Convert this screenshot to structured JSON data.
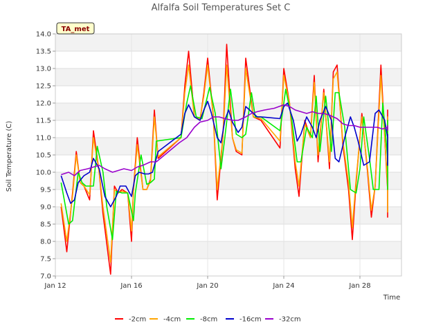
{
  "chart_data": {
    "type": "line",
    "title": "Alfalfa Soil Temperatures Set C",
    "xlabel": "Time",
    "ylabel": "Soil Temperature (C)",
    "annotation": "TA_met",
    "x_ticks": [
      "Jan 12",
      "Jan 16",
      "Jan 20",
      "Jan 24",
      "Jan 28"
    ],
    "x_tick_days": [
      12,
      16,
      20,
      24,
      28
    ],
    "xlim": [
      12,
      30
    ],
    "ylim": [
      7.0,
      14.0
    ],
    "y_ticks": [
      "7.0",
      "7.5",
      "8.0",
      "8.5",
      "9.0",
      "9.5",
      "10.0",
      "10.5",
      "11.0",
      "11.5",
      "12.0",
      "12.5",
      "13.0",
      "13.5",
      "14.0"
    ],
    "grid": true,
    "legend_position": "bottom",
    "series": [
      {
        "name": "-2cm",
        "color": "#ff0000",
        "x": [
          12.3,
          12.6,
          12.9,
          13.1,
          13.3,
          13.5,
          13.8,
          14.0,
          14.3,
          14.5,
          14.9,
          15.1,
          15.3,
          15.5,
          15.8,
          16.0,
          16.1,
          16.3,
          16.6,
          16.8,
          17.0,
          17.2,
          17.4,
          18.6,
          18.8,
          19.0,
          19.3,
          19.6,
          19.8,
          20.0,
          20.3,
          20.5,
          20.8,
          21.0,
          21.3,
          21.5,
          21.8,
          22.0,
          22.4,
          22.8,
          23.8,
          24.0,
          24.3,
          24.6,
          24.8,
          25.1,
          25.4,
          25.6,
          25.8,
          26.1,
          26.4,
          26.6,
          26.8,
          27.1,
          27.4,
          27.6,
          27.8,
          28.1,
          28.4,
          28.6,
          28.8,
          29.1,
          29.4,
          29.6
        ],
        "y": [
          9.0,
          7.7,
          9.4,
          10.6,
          9.7,
          9.6,
          9.2,
          11.2,
          10.0,
          8.8,
          7.05,
          9.6,
          9.4,
          9.5,
          9.4,
          8.0,
          9.5,
          11.0,
          9.5,
          9.5,
          9.8,
          11.8,
          10.4,
          11.0,
          12.5,
          13.5,
          11.6,
          11.5,
          12.3,
          13.3,
          11.6,
          9.2,
          11.0,
          13.7,
          11.0,
          10.6,
          10.5,
          13.3,
          11.6,
          11.5,
          10.7,
          13.0,
          12.0,
          10.1,
          9.3,
          11.5,
          11.0,
          12.8,
          10.3,
          12.4,
          10.1,
          12.9,
          13.1,
          10.8,
          9.5,
          8.05,
          9.7,
          11.7,
          10.0,
          8.7,
          9.6,
          13.1,
          10.0,
          9.5
        ],
        "x2": [
          29.6,
          29.8,
          30.0,
          30.3,
          30.6,
          30.8,
          31.0
        ],
        "y2": [
          9.5,
          9.1,
          8.75,
          8.7,
          10.8,
          11.8,
          11.05
        ]
      },
      {
        "name": "-4cm",
        "color": "#ffa500",
        "x": [
          12.3,
          12.6,
          12.9,
          13.1,
          13.3,
          13.5,
          13.8,
          14.0,
          14.3,
          14.5,
          14.9,
          15.1,
          15.3,
          15.5,
          15.8,
          16.0,
          16.1,
          16.3,
          16.6,
          16.8,
          17.0,
          17.2,
          17.4,
          18.6,
          18.8,
          19.0,
          19.3,
          19.6,
          19.8,
          20.0,
          20.3,
          20.5,
          20.8,
          21.0,
          21.3,
          21.5,
          21.8,
          22.0,
          22.4,
          22.8,
          23.8,
          24.0,
          24.3,
          24.6,
          24.8,
          25.1,
          25.4,
          25.6,
          25.8,
          26.1,
          26.4,
          26.6,
          26.8,
          27.1,
          27.4,
          27.6,
          27.8,
          28.1,
          28.4,
          28.6,
          28.8,
          29.1,
          29.4,
          29.6
        ],
        "y": [
          9.1,
          8.0,
          9.3,
          10.5,
          9.7,
          9.6,
          9.35,
          11.0,
          10.0,
          9.0,
          7.4,
          9.5,
          9.4,
          9.45,
          9.4,
          8.3,
          9.45,
          10.8,
          9.5,
          9.5,
          9.75,
          11.6,
          10.45,
          11.0,
          12.3,
          13.1,
          11.6,
          11.55,
          12.2,
          13.1,
          11.6,
          9.5,
          11.0,
          13.1,
          11.0,
          10.65,
          10.55,
          13.0,
          11.6,
          11.55,
          10.9,
          12.8,
          12.0,
          10.3,
          9.6,
          11.4,
          11.0,
          12.6,
          10.5,
          12.3,
          10.3,
          12.7,
          12.9,
          10.9,
          9.7,
          8.4,
          9.8,
          11.6,
          10.1,
          8.9,
          9.6,
          12.8,
          10.1,
          9.6
        ],
        "x2": [
          29.6,
          29.8,
          30.0,
          30.3,
          30.6,
          30.8,
          31.0
        ],
        "y2": [
          9.6,
          9.2,
          8.9,
          8.85,
          10.9,
          11.6,
          11.1
        ]
      },
      {
        "name": "-8cm",
        "color": "#00ee00",
        "x": [
          12.3,
          12.7,
          12.9,
          13.2,
          13.4,
          13.6,
          14.0,
          14.2,
          14.5,
          14.7,
          15.0,
          15.2,
          15.5,
          15.8,
          16.1,
          16.2,
          16.5,
          16.8,
          17.0,
          17.2,
          17.3,
          18.6,
          18.9,
          19.1,
          19.4,
          19.7,
          19.9,
          20.1,
          20.4,
          20.7,
          20.9,
          21.2,
          21.5,
          21.8,
          22.0,
          22.3,
          22.5,
          22.8,
          23.8,
          24.1,
          24.4,
          24.7,
          24.9,
          25.2,
          25.5,
          25.7,
          25.9,
          26.2,
          26.5,
          26.7,
          26.9,
          27.2,
          27.5,
          27.8,
          28.0,
          28.2,
          28.5,
          28.7,
          29.0,
          29.2,
          29.5,
          29.7
        ],
        "y": [
          9.7,
          8.5,
          8.6,
          10.0,
          9.7,
          9.6,
          9.6,
          10.75,
          10.0,
          9.0,
          8.05,
          9.45,
          9.4,
          9.4,
          8.6,
          9.4,
          10.5,
          9.65,
          9.7,
          9.8,
          10.9,
          11.0,
          12.0,
          12.5,
          11.6,
          11.55,
          12.0,
          12.45,
          11.7,
          10.1,
          11.0,
          12.4,
          11.1,
          11.0,
          11.1,
          12.3,
          11.6,
          11.6,
          11.2,
          12.4,
          11.6,
          10.3,
          10.3,
          11.3,
          11.0,
          12.2,
          10.6,
          12.2,
          10.6,
          12.3,
          12.3,
          11.3,
          9.5,
          9.4,
          10.1,
          11.6,
          10.4,
          9.5,
          9.5,
          12.0,
          10.4,
          9.6
        ],
        "x2": [
          29.7,
          30.0,
          30.3,
          30.6,
          30.8,
          31.0
        ],
        "y2": [
          9.6,
          9.5,
          10.0,
          11.0,
          11.5,
          11.2
        ]
      },
      {
        "name": "-16cm",
        "color": "#0000cc",
        "x": [
          12.3,
          12.6,
          12.8,
          13.0,
          13.2,
          13.5,
          13.8,
          14.0,
          14.3,
          14.6,
          14.9,
          15.2,
          15.4,
          15.7,
          16.0,
          16.2,
          16.4,
          16.7,
          16.9,
          17.1,
          17.4,
          18.6,
          18.8,
          19.0,
          19.3,
          19.6,
          19.8,
          20.0,
          20.2,
          20.5,
          20.7,
          20.9,
          21.1,
          21.3,
          21.6,
          21.8,
          22.0,
          22.3,
          22.6,
          22.8,
          23.8,
          24.0,
          24.2,
          24.5,
          24.7,
          24.9,
          25.2,
          25.5,
          25.7,
          25.9,
          26.2,
          26.5,
          26.7,
          26.9,
          27.2,
          27.5,
          27.7,
          27.9,
          28.2,
          28.5,
          28.8,
          29.0,
          29.3,
          29.6
        ],
        "y": [
          9.9,
          9.4,
          9.1,
          9.2,
          9.7,
          9.9,
          10.0,
          10.4,
          10.1,
          9.3,
          9.0,
          9.3,
          9.6,
          9.6,
          9.3,
          9.9,
          10.0,
          9.95,
          9.95,
          10.0,
          10.6,
          11.1,
          11.7,
          11.95,
          11.6,
          11.5,
          11.8,
          12.05,
          11.7,
          11.0,
          10.85,
          11.5,
          11.8,
          11.45,
          11.15,
          11.3,
          11.9,
          11.75,
          11.6,
          11.6,
          11.55,
          11.9,
          12.0,
          11.5,
          10.9,
          11.1,
          11.6,
          11.3,
          11.0,
          11.5,
          11.9,
          11.5,
          10.4,
          10.3,
          11.0,
          11.6,
          11.3,
          10.9,
          10.2,
          10.3,
          11.7,
          11.8,
          11.5,
          11.0
        ],
        "x2": [
          29.6,
          29.9,
          30.2,
          30.5,
          30.7,
          31.0
        ],
        "y2": [
          11.0,
          10.5,
          10.2,
          10.2,
          10.8,
          11.1
        ]
      },
      {
        "name": "-32cm",
        "color": "#9900cc",
        "x": [
          12.3,
          12.7,
          13.0,
          13.3,
          13.7,
          14.0,
          14.3,
          14.6,
          15.0,
          15.3,
          15.6,
          16.0,
          16.3,
          16.6,
          17.0,
          17.3,
          18.5,
          18.9,
          19.3,
          19.6,
          20.0,
          20.3,
          20.6,
          20.9,
          21.3,
          21.6,
          22.0,
          22.3,
          22.6,
          23.0,
          23.5,
          24.0,
          24.3,
          24.6,
          24.9,
          25.2,
          25.5,
          25.8,
          26.1,
          26.4,
          26.8,
          27.1,
          27.4,
          27.7,
          28.0,
          28.3,
          28.6,
          28.9,
          29.2,
          29.5
        ],
        "y": [
          9.93,
          10.0,
          9.9,
          10.05,
          10.1,
          10.15,
          10.2,
          10.1,
          10.0,
          10.05,
          10.1,
          10.05,
          10.15,
          10.2,
          10.3,
          10.3,
          10.85,
          11.0,
          11.3,
          11.45,
          11.5,
          11.6,
          11.6,
          11.55,
          11.5,
          11.5,
          11.6,
          11.7,
          11.75,
          11.8,
          11.85,
          11.95,
          11.9,
          11.8,
          11.75,
          11.7,
          11.75,
          11.7,
          11.7,
          11.65,
          11.55,
          11.4,
          11.35,
          11.35,
          11.3,
          11.3,
          11.3,
          11.3,
          11.25,
          11.3
        ],
        "x2": [
          29.5,
          29.8,
          30.1,
          30.4,
          30.7,
          31.0
        ],
        "y2": [
          11.3,
          11.35,
          11.3,
          11.3,
          11.2,
          11.2
        ]
      }
    ]
  }
}
